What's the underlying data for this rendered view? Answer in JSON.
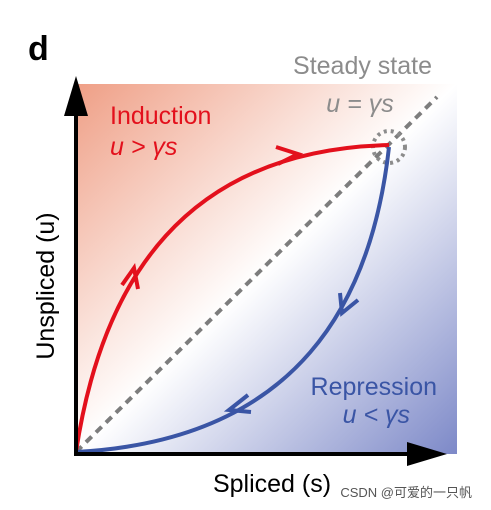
{
  "panel_label": "d",
  "steady_state": {
    "title": "Steady state",
    "equation": "u = γs"
  },
  "induction": {
    "title": "Induction",
    "condition": "u > γs"
  },
  "repression": {
    "title": "Repression",
    "condition": "u < γs"
  },
  "axes": {
    "x_label": "Spliced (s)",
    "y_label": "Unspliced (u)"
  },
  "watermark": "CSDN @可爱的一只帆",
  "colors": {
    "induction": "#e3101c",
    "repression": "#3a55a5",
    "steady_state_text": "#8c8c8c",
    "diagonal": "#7d7d7d",
    "axis": "#000000",
    "gradient_top_left": "#ef9f86",
    "gradient_bottom_right": "#7d89c8"
  }
}
